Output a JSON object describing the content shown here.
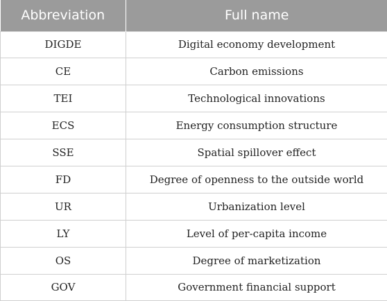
{
  "table": {
    "headers": [
      "Abbreviation",
      "Full name"
    ],
    "rows": [
      [
        "DIGDE",
        "Digital economy development"
      ],
      [
        "CE",
        "Carbon emissions"
      ],
      [
        "TEI",
        "Technological innovations"
      ],
      [
        "ECS",
        "Energy consumption structure"
      ],
      [
        "SSE",
        "Spatial spillover effect"
      ],
      [
        "FD",
        "Degree of openness to the outside world"
      ],
      [
        "UR",
        "Urbanization level"
      ],
      [
        "LY",
        "Level of per-capita income"
      ],
      [
        "OS",
        "Degree of marketization"
      ],
      [
        "GOV",
        "Government financial support"
      ]
    ]
  },
  "colors": {
    "header_background": "#9b9b9b",
    "header_text": "#ffffff",
    "border": "#cfcfcf"
  }
}
